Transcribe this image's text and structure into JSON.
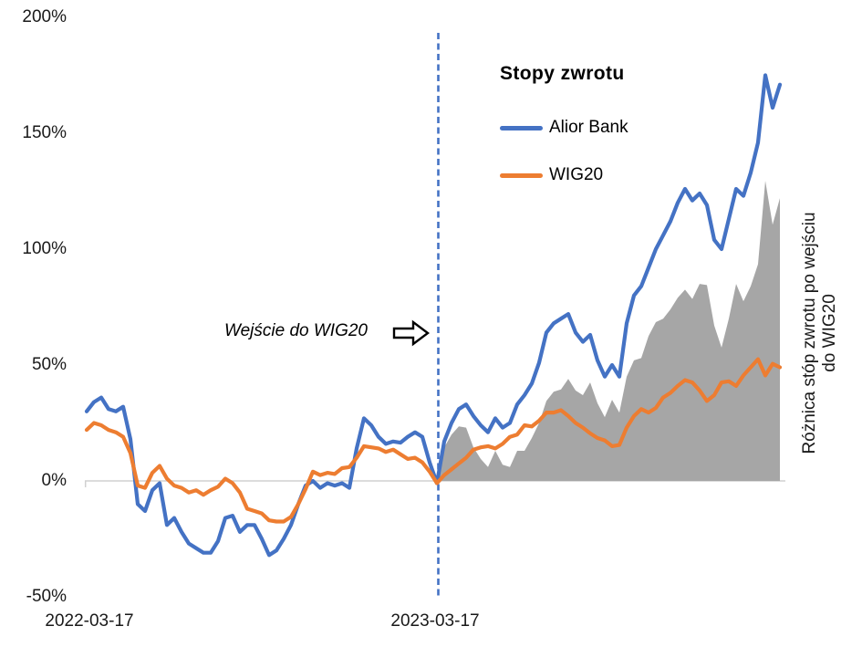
{
  "chart_data": {
    "type": "line",
    "title": "Stopy zwrotu",
    "y_tick_labels": [
      "200%",
      "150%",
      "100%",
      "50%",
      "0%",
      "-50%"
    ],
    "ylim": [
      -50,
      200
    ],
    "y_unit": "%",
    "x_tick_labels": [
      "2022-03-17",
      "2023-03-17"
    ],
    "x_range_note": "daily cumulative returns from 2022-03-17; vertical dashed marker at 2023-03-17",
    "entry_index": 48,
    "entry_date_label": "2023-03-17",
    "annotation": "Wejście do WIG20",
    "annotation_icon": "right-block-arrow",
    "right_axis_label_line1": "Różnica stóp zwrotu po wejściu",
    "right_axis_label_line2": "do WIG20",
    "grid": "horizontal line at 0% only",
    "legend_position": "top-right inside plot",
    "entry_line_color": "#4472C4",
    "grid_color": "#D0D0D0",
    "series": [
      {
        "name": "Alior Bank",
        "color": "#4472C4",
        "values": [
          30,
          34,
          36,
          31,
          30,
          32,
          18,
          -10,
          -13,
          -4,
          -1,
          -19,
          -16,
          -22,
          -27,
          -29,
          -31,
          -31,
          -26,
          -16,
          -15,
          -22,
          -19,
          -19,
          -25,
          -32,
          -30,
          -25,
          -19,
          -10,
          -2,
          0,
          -3,
          -1,
          -2,
          -1,
          -3,
          14,
          27,
          24,
          19,
          16,
          17,
          16.5,
          19,
          21,
          19,
          8,
          -1,
          17,
          25,
          31,
          33,
          28,
          24,
          21,
          27,
          23,
          25,
          33,
          37,
          42,
          51,
          64,
          68,
          70,
          72,
          64,
          60,
          63,
          52,
          45,
          50,
          45,
          68,
          80,
          84,
          92,
          100,
          106,
          112,
          120,
          126,
          121,
          124,
          119,
          104,
          100,
          113,
          126,
          123,
          133,
          146,
          175,
          161,
          171
        ]
      },
      {
        "name": "WIG20",
        "color": "#ED7D31",
        "values": [
          22,
          25,
          24,
          22,
          21,
          19,
          12,
          -2,
          -3,
          3.5,
          6.5,
          1,
          -2,
          -3,
          -5,
          -4,
          -6,
          -4,
          -2.5,
          1,
          -1,
          -5,
          -12,
          -13,
          -14,
          -17,
          -17.5,
          -17.5,
          -15.5,
          -10,
          -3.5,
          4,
          2.5,
          3.5,
          3,
          5.5,
          6,
          10,
          15,
          14.5,
          14,
          12.5,
          13.5,
          11.5,
          9.5,
          10,
          8,
          4,
          -1,
          2.5,
          5,
          7.5,
          10,
          13.5,
          14.5,
          15,
          14,
          16,
          19,
          20,
          24,
          23.5,
          26,
          29.5,
          29.5,
          30.5,
          28,
          25,
          23,
          20.5,
          18.5,
          17.5,
          15,
          15.5,
          23,
          28,
          31,
          29.5,
          31.5,
          36,
          38,
          41,
          43.5,
          42.5,
          39,
          34.5,
          37,
          42.5,
          43,
          41,
          45.5,
          49,
          52.5,
          45.5,
          50.5,
          49
        ]
      }
    ],
    "difference_area": {
      "label": "Różnica stóp zwrotu po wejściu do WIG20",
      "color": "#A6A6A6",
      "derived": "Alior Bank minus WIG20, shown only after the entry marker, baseline 0%"
    }
  },
  "legend": {
    "title": "Stopy zwrotu",
    "items": [
      {
        "label": "Alior Bank"
      },
      {
        "label": "WIG20"
      }
    ]
  }
}
